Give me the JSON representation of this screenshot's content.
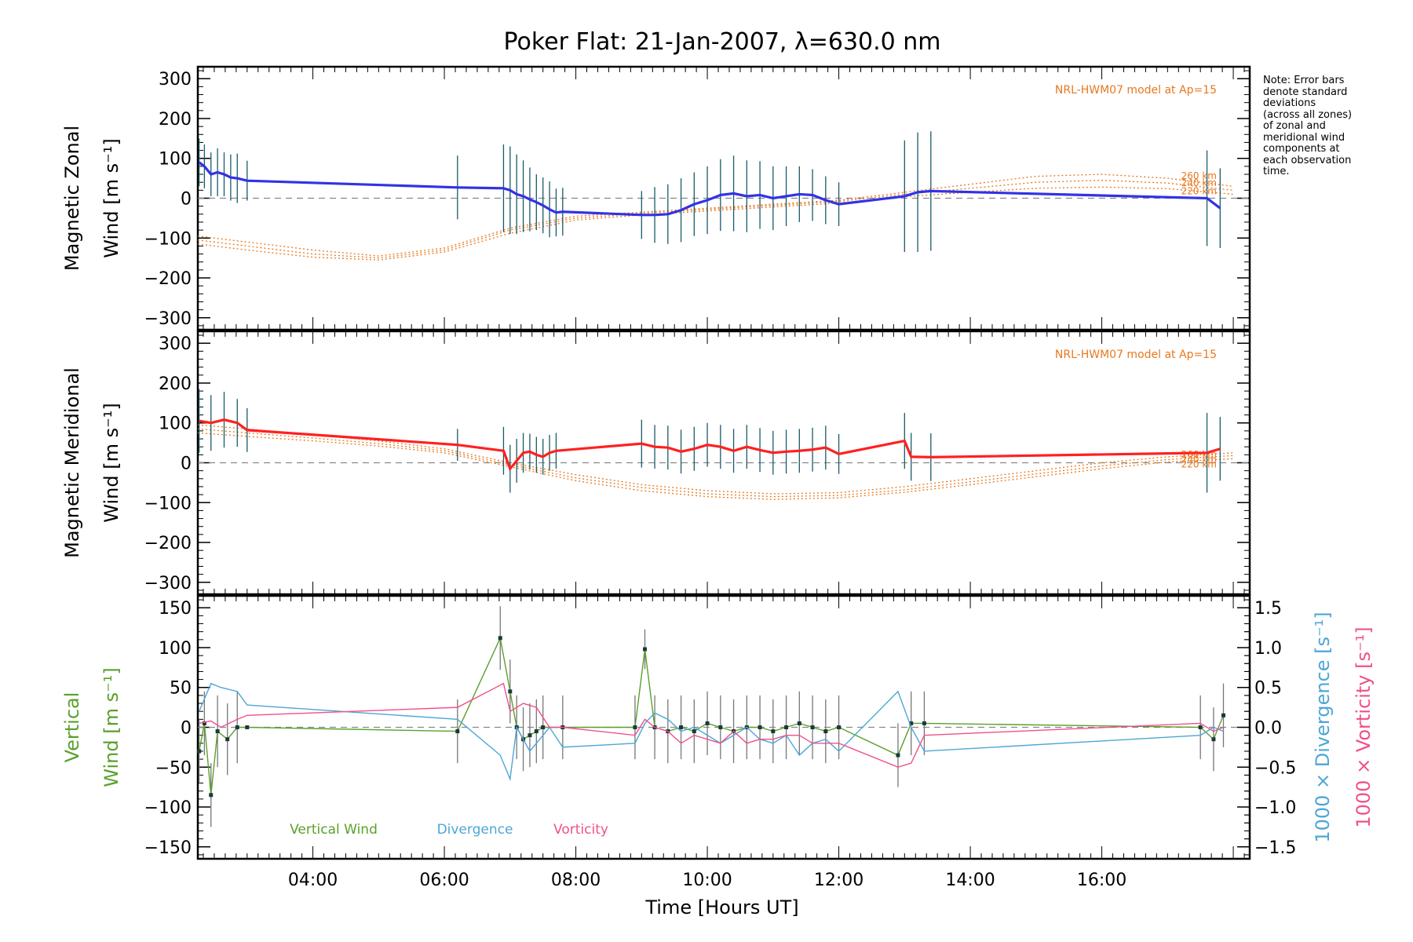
{
  "chart_data": {
    "type": "line",
    "title": "Poker Flat: 21-Jan-2007, λ=630.0 nm",
    "xlabel": "Time [Hours UT]",
    "xlim": [
      2.25,
      18.25
    ],
    "xticks": [
      4,
      6,
      8,
      10,
      12,
      14,
      16
    ],
    "xtick_labels": [
      "04:00",
      "06:00",
      "08:00",
      "10:00",
      "12:00",
      "14:00",
      "16:00"
    ],
    "note": "Note: Error bars\ndenote standard\ndeviations\n(across all zones)\nof zonal and\nmeridional wind\ncomponents at\neach observation\ntime.",
    "panels": [
      {
        "id": "zonal",
        "ylabel_line1": "Magnetic Zonal",
        "ylabel_line2": "Wind [m s⁻¹]",
        "ylim": [
          -330,
          330
        ],
        "yticks": [
          -300,
          -200,
          -100,
          0,
          100,
          200,
          300
        ],
        "ytick_labels": [
          "−300",
          "−200",
          "−100",
          "0",
          "100",
          "200",
          "300"
        ],
        "model_label": "NRL-HWM07 model at Ap=15",
        "model_alt_labels": [
          "260 km",
          "240 km",
          "220 km"
        ],
        "series": [
          {
            "name": "Magnetic Zonal Wind",
            "color": "#3232e6",
            "x": [
              2.27,
              2.35,
              2.45,
              2.55,
              2.65,
              2.75,
              2.85,
              3.0,
              6.2,
              6.9,
              7.0,
              7.1,
              7.2,
              7.3,
              7.4,
              7.5,
              7.6,
              7.7,
              7.8,
              9.0,
              9.2,
              9.4,
              9.6,
              9.8,
              10.0,
              10.2,
              10.4,
              10.6,
              10.8,
              11.0,
              11.2,
              11.4,
              11.6,
              11.8,
              12.0,
              13.0,
              13.2,
              13.4,
              17.6,
              17.8
            ],
            "y": [
              90,
              80,
              60,
              65,
              60,
              52,
              50,
              44,
              27,
              25,
              20,
              10,
              5,
              -3,
              -10,
              -18,
              -28,
              -36,
              -34,
              -42,
              -42,
              -40,
              -30,
              -15,
              -5,
              8,
              12,
              5,
              8,
              0,
              5,
              10,
              8,
              -5,
              -15,
              5,
              15,
              18,
              0,
              -25
            ],
            "err": [
              60,
              55,
              55,
              60,
              55,
              58,
              62,
              50,
              80,
              110,
              110,
              100,
              90,
              80,
              70,
              70,
              70,
              60,
              60,
              60,
              70,
              75,
              80,
              80,
              85,
              90,
              95,
              90,
              85,
              80,
              75,
              70,
              65,
              60,
              55,
              140,
              150,
              150,
              120,
              100
            ]
          }
        ],
        "model": [
          {
            "altitude": "260 km",
            "x": [
              2.25,
              3.0,
              4.0,
              5.0,
              6.0,
              7.0,
              8.0,
              9.0,
              10.0,
              11.0,
              12.0,
              13.0,
              14.0,
              15.0,
              16.0,
              17.0,
              18.0
            ],
            "y": [
              -95,
              -110,
              -130,
              -145,
              -125,
              -75,
              -45,
              -35,
              -25,
              -15,
              -5,
              15,
              35,
              55,
              60,
              50,
              30
            ]
          },
          {
            "altitude": "240 km",
            "x": [
              2.25,
              3.0,
              4.0,
              5.0,
              6.0,
              7.0,
              8.0,
              9.0,
              10.0,
              11.0,
              12.0,
              13.0,
              14.0,
              15.0,
              16.0,
              17.0,
              18.0
            ],
            "y": [
              -105,
              -120,
              -140,
              -150,
              -130,
              -80,
              -50,
              -38,
              -28,
              -18,
              -8,
              10,
              25,
              40,
              45,
              38,
              20
            ]
          },
          {
            "altitude": "220 km",
            "x": [
              2.25,
              3.0,
              4.0,
              5.0,
              6.0,
              7.0,
              8.0,
              9.0,
              10.0,
              11.0,
              12.0,
              13.0,
              14.0,
              15.0,
              16.0,
              17.0,
              18.0
            ],
            "y": [
              -115,
              -130,
              -148,
              -155,
              -135,
              -88,
              -55,
              -42,
              -32,
              -22,
              -12,
              4,
              15,
              25,
              28,
              24,
              10
            ]
          }
        ]
      },
      {
        "id": "meridional",
        "ylabel_line1": "Magnetic Meridional",
        "ylabel_line2": "Wind [m s⁻¹]",
        "ylim": [
          -330,
          330
        ],
        "yticks": [
          -300,
          -200,
          -100,
          0,
          100,
          200,
          300
        ],
        "ytick_labels": [
          "−300",
          "−200",
          "−100",
          "0",
          "100",
          "200",
          "300"
        ],
        "model_label": "NRL-HWM07 model at Ap=15",
        "model_alt_labels": [
          "260 km",
          "240 km",
          "220 km"
        ],
        "series": [
          {
            "name": "Magnetic Meridional Wind",
            "color": "#ff2020",
            "x": [
              2.27,
              2.45,
              2.65,
              2.85,
              3.0,
              6.2,
              6.9,
              7.0,
              7.1,
              7.2,
              7.3,
              7.4,
              7.5,
              7.6,
              7.7,
              9.0,
              9.2,
              9.4,
              9.6,
              9.8,
              10.0,
              10.2,
              10.4,
              10.6,
              10.8,
              11.0,
              11.2,
              11.4,
              11.6,
              11.8,
              12.0,
              13.0,
              13.1,
              13.4,
              17.6,
              17.8
            ],
            "y": [
              105,
              100,
              108,
              100,
              82,
              45,
              30,
              -15,
              5,
              25,
              28,
              20,
              15,
              25,
              30,
              48,
              40,
              38,
              28,
              35,
              45,
              40,
              30,
              40,
              32,
              25,
              28,
              30,
              33,
              38,
              22,
              55,
              15,
              14,
              25,
              35
            ],
            "err": [
              80,
              70,
              70,
              60,
              55,
              40,
              60,
              60,
              55,
              50,
              45,
              45,
              45,
              45,
              45,
              60,
              55,
              55,
              55,
              55,
              55,
              55,
              55,
              55,
              55,
              55,
              55,
              55,
              55,
              55,
              50,
              70,
              60,
              60,
              100,
              80
            ]
          }
        ],
        "model": [
          {
            "altitude": "260 km",
            "x": [
              2.25,
              3.0,
              4.0,
              5.0,
              6.0,
              7.0,
              8.0,
              9.0,
              10.0,
              11.0,
              12.0,
              13.0,
              14.0,
              15.0,
              16.0,
              17.0,
              18.0
            ],
            "y": [
              95,
              85,
              70,
              55,
              35,
              0,
              -30,
              -55,
              -70,
              -78,
              -75,
              -60,
              -40,
              -20,
              0,
              15,
              25
            ]
          },
          {
            "altitude": "240 km",
            "x": [
              2.25,
              3.0,
              4.0,
              5.0,
              6.0,
              7.0,
              8.0,
              9.0,
              10.0,
              11.0,
              12.0,
              13.0,
              14.0,
              15.0,
              16.0,
              17.0,
              18.0
            ],
            "y": [
              85,
              75,
              62,
              48,
              30,
              -5,
              -38,
              -62,
              -78,
              -85,
              -82,
              -68,
              -48,
              -28,
              -8,
              8,
              18
            ]
          },
          {
            "altitude": "220 km",
            "x": [
              2.25,
              3.0,
              4.0,
              5.0,
              6.0,
              7.0,
              8.0,
              9.0,
              10.0,
              11.0,
              12.0,
              13.0,
              14.0,
              15.0,
              16.0,
              17.0,
              18.0
            ],
            "y": [
              75,
              66,
              55,
              42,
              25,
              -10,
              -45,
              -70,
              -85,
              -92,
              -88,
              -74,
              -55,
              -35,
              -15,
              2,
              10
            ]
          }
        ]
      },
      {
        "id": "vertical",
        "ylabel_line1": "Vertical",
        "ylabel_line2": "Wind [m s⁻¹]",
        "ylim": [
          -165,
          165
        ],
        "yticks": [
          -150,
          -100,
          -50,
          0,
          50,
          100,
          150
        ],
        "ytick_labels": [
          "−150",
          "−100",
          "−50",
          "0",
          "50",
          "100",
          "150"
        ],
        "y2label_div": "1000 × Divergence [s⁻¹]",
        "y2label_vort": "1000 × Vorticity [s⁻¹]",
        "y2lim": [
          -1.65,
          1.65
        ],
        "y2ticks": [
          -1.5,
          -1.0,
          -0.5,
          0.0,
          0.5,
          1.0,
          1.5
        ],
        "y2tick_labels": [
          "−1.5",
          "−1.0",
          "−0.5",
          "0.0",
          "0.5",
          "1.0",
          "1.5"
        ],
        "legend": [
          "Vertical Wind",
          "Divergence",
          "Vorticity"
        ],
        "series": [
          {
            "name": "Vertical Wind",
            "color": "#5aa02c",
            "x": [
              2.27,
              2.35,
              2.45,
              2.55,
              2.7,
              2.85,
              3.0,
              6.2,
              6.85,
              7.0,
              7.1,
              7.2,
              7.3,
              7.4,
              7.5,
              7.8,
              8.9,
              9.05,
              9.2,
              9.4,
              9.6,
              9.8,
              10.0,
              10.2,
              10.4,
              10.6,
              10.8,
              11.0,
              11.2,
              11.4,
              11.6,
              11.8,
              12.0,
              12.9,
              13.1,
              13.3,
              17.5,
              17.7,
              17.85
            ],
            "y": [
              -30,
              5,
              -85,
              -5,
              -15,
              0,
              0,
              -5,
              112,
              45,
              0,
              -15,
              -10,
              -5,
              0,
              0,
              0,
              98,
              0,
              -5,
              0,
              -5,
              5,
              0,
              -5,
              0,
              0,
              -5,
              0,
              5,
              0,
              -5,
              0,
              -35,
              5,
              5,
              0,
              -15,
              15
            ],
            "err": [
              40,
              40,
              40,
              45,
              45,
              45,
              0,
              40,
              40,
              40,
              40,
              40,
              40,
              40,
              40,
              40,
              40,
              25,
              40,
              40,
              40,
              40,
              40,
              40,
              40,
              40,
              40,
              40,
              40,
              40,
              40,
              40,
              40,
              40,
              40,
              40,
              40,
              40,
              40
            ]
          },
          {
            "name": "Divergence",
            "color": "#4da6d6",
            "axis": "y2",
            "x": [
              2.27,
              2.45,
              2.6,
              2.85,
              3.0,
              6.2,
              6.85,
              7.0,
              7.1,
              7.3,
              7.6,
              7.8,
              8.9,
              9.05,
              9.2,
              9.4,
              9.6,
              9.8,
              10.0,
              10.2,
              10.4,
              10.6,
              10.8,
              11.0,
              11.2,
              11.4,
              11.6,
              11.8,
              12.0,
              12.9,
              13.1,
              13.3,
              17.5,
              17.7,
              17.85
            ],
            "y": [
              0.2,
              0.55,
              0.5,
              0.45,
              0.28,
              0.1,
              -0.35,
              -0.65,
              0.0,
              -0.3,
              0.0,
              -0.25,
              -0.2,
              0.05,
              0.18,
              0.1,
              -0.05,
              0.0,
              -0.1,
              -0.2,
              -0.1,
              0.0,
              -0.15,
              -0.2,
              -0.1,
              -0.35,
              -0.2,
              -0.15,
              -0.3,
              0.45,
              0.0,
              -0.3,
              -0.1,
              0.0,
              -0.05
            ],
            "err": []
          },
          {
            "name": "Vorticity",
            "color": "#f0508c",
            "axis": "y2",
            "x": [
              2.27,
              2.45,
              2.6,
              2.85,
              3.0,
              6.2,
              6.9,
              7.0,
              7.2,
              7.4,
              7.6,
              7.8,
              8.9,
              9.05,
              9.2,
              9.4,
              9.6,
              9.8,
              10.0,
              10.2,
              10.4,
              10.6,
              10.8,
              11.0,
              11.2,
              11.4,
              11.6,
              11.8,
              12.0,
              12.9,
              13.1,
              13.3,
              17.5,
              17.7,
              17.85
            ],
            "y": [
              0.05,
              0.08,
              0.0,
              0.1,
              0.15,
              0.25,
              0.55,
              0.2,
              0.3,
              0.25,
              0.0,
              0.0,
              -0.1,
              0.1,
              0.0,
              -0.05,
              -0.2,
              -0.1,
              -0.15,
              -0.2,
              -0.05,
              -0.2,
              -0.15,
              -0.15,
              -0.1,
              -0.1,
              -0.2,
              -0.2,
              -0.2,
              -0.5,
              -0.45,
              -0.1,
              0.05,
              -0.05,
              0.0
            ],
            "err": []
          }
        ]
      }
    ]
  },
  "colors": {
    "zonal": "#3232e6",
    "meridional": "#ff2020",
    "model": "#e8781e",
    "vertical": "#5aa02c",
    "divergence": "#4da6d6",
    "vorticity": "#f0508c",
    "zero_line": "#888888",
    "error_bar": "#555555"
  }
}
